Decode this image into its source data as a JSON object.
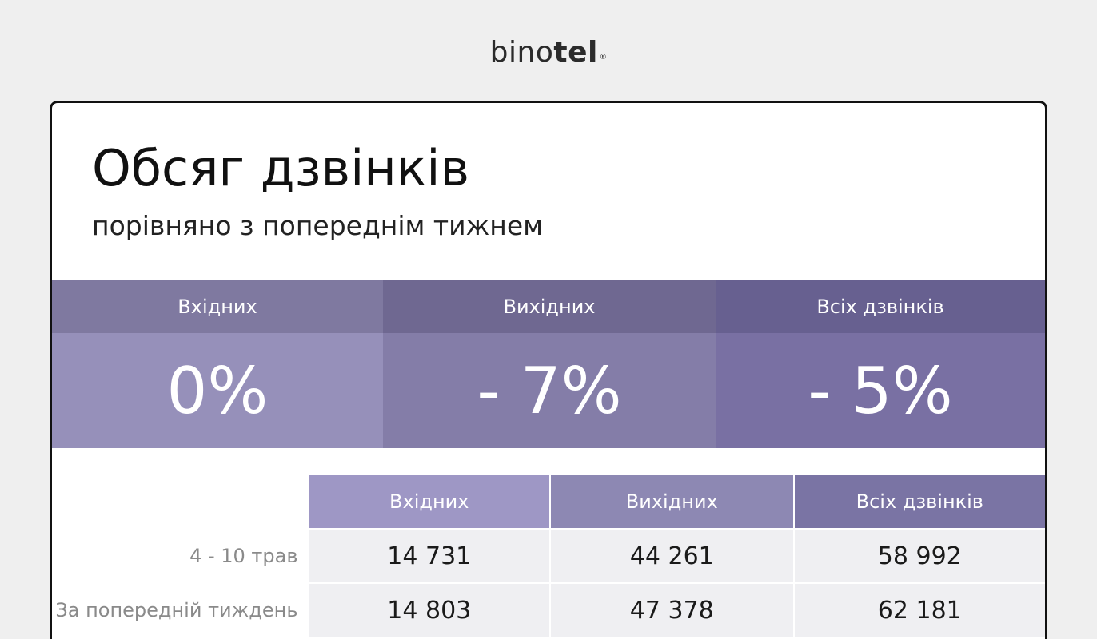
{
  "logo": {
    "light": "bino",
    "bold": "tel",
    "mark": "®"
  },
  "title": "Обсяг дзвінків",
  "subtitle": "порівняно з попереднім тижнем",
  "stats": [
    {
      "label": "Вхідних",
      "value": "0%",
      "head_color": "#7f79a0",
      "value_color": "#9690ba"
    },
    {
      "label": "Вихідних",
      "value": "- 7%",
      "head_color": "#6f6891",
      "value_color": "#847da8"
    },
    {
      "label": "Всіх дзвінків",
      "value": "- 5%",
      "head_color": "#676090",
      "value_color": "#7970a3"
    }
  ],
  "table": {
    "headers": [
      {
        "label": "Вхідних",
        "color": "#9e97c5"
      },
      {
        "label": "Вихідних",
        "color": "#8d88b3"
      },
      {
        "label": "Всіх дзвінків",
        "color": "#7a74a4"
      }
    ],
    "rows": [
      {
        "label": "4 - 10 трав",
        "values": [
          "14 731",
          "44 261",
          "58 992"
        ]
      },
      {
        "label": "За попередній тиждень",
        "values": [
          "14 803",
          "47 378",
          "62 181"
        ]
      }
    ]
  }
}
